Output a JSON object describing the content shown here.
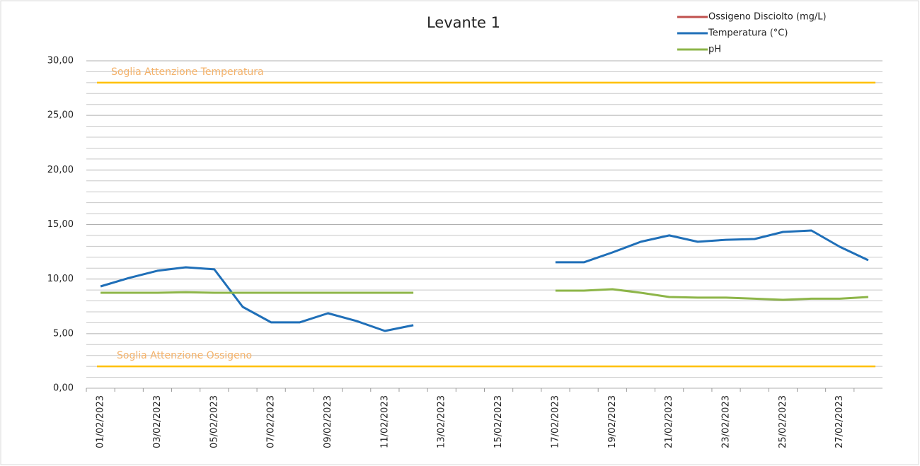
{
  "chart_data": {
    "type": "line",
    "title": "Levante 1",
    "categories": [
      "01/02/2023",
      null,
      "03/02/2023",
      null,
      "05/02/2023",
      null,
      "07/02/2023",
      null,
      "09/02/2023",
      null,
      "11/02/2023",
      null,
      "13/02/2023",
      null,
      "15/02/2023",
      null,
      "17/02/2023",
      null,
      "19/02/2023",
      null,
      "21/02/2023",
      null,
      "23/02/2023",
      null,
      "25/02/2023",
      null,
      "27/02/2023",
      null
    ],
    "series": [
      {
        "name": "Ossigeno Disciolto (mg/L)",
        "color": "#c0504d",
        "values": [
          null,
          null,
          null,
          null,
          null,
          null,
          null,
          null,
          null,
          null,
          null,
          null,
          null,
          null,
          null,
          null,
          null,
          null,
          null,
          null,
          null,
          null,
          null,
          null,
          null,
          null,
          null,
          null
        ]
      },
      {
        "name": "Temperatura (°C)",
        "color": "#1f6fb8",
        "values": [
          9.33,
          10.1,
          10.76,
          11.08,
          10.89,
          7.45,
          6.03,
          6.03,
          6.87,
          6.16,
          5.25,
          5.77,
          null,
          null,
          null,
          null,
          11.54,
          11.54,
          12.44,
          13.42,
          14.0,
          13.42,
          13.6,
          13.67,
          14.32,
          14.45,
          12.96,
          11.73
        ]
      },
      {
        "name": "pH",
        "color": "#8db548",
        "values": [
          8.75,
          8.75,
          8.75,
          8.8,
          8.75,
          8.75,
          8.75,
          8.75,
          8.75,
          8.75,
          8.75,
          8.75,
          null,
          null,
          null,
          null,
          8.94,
          8.94,
          9.07,
          8.75,
          8.36,
          8.3,
          8.3,
          8.2,
          8.1,
          8.2,
          8.2,
          8.36
        ]
      }
    ],
    "thresholds": [
      {
        "label": "Soglia Attenzione Temperatura",
        "value": 28,
        "color": "#ffc000",
        "label_color": "#f4b26a"
      },
      {
        "label": "Soglia Attenzione Ossigeno",
        "value": 2,
        "color": "#ffc000",
        "label_color": "#f4b26a"
      }
    ],
    "ylim": [
      0,
      30
    ],
    "yticks": [
      {
        "value": 0,
        "label": "0,00"
      },
      {
        "value": 5,
        "label": "5,00"
      },
      {
        "value": 10,
        "label": "10,00"
      },
      {
        "value": 15,
        "label": "15,00"
      },
      {
        "value": 20,
        "label": "20,00"
      },
      {
        "value": 25,
        "label": "25,00"
      },
      {
        "value": 30,
        "label": "30,00"
      }
    ],
    "grid": true,
    "minor_grid_divisions": 5,
    "legend": "top-right"
  }
}
